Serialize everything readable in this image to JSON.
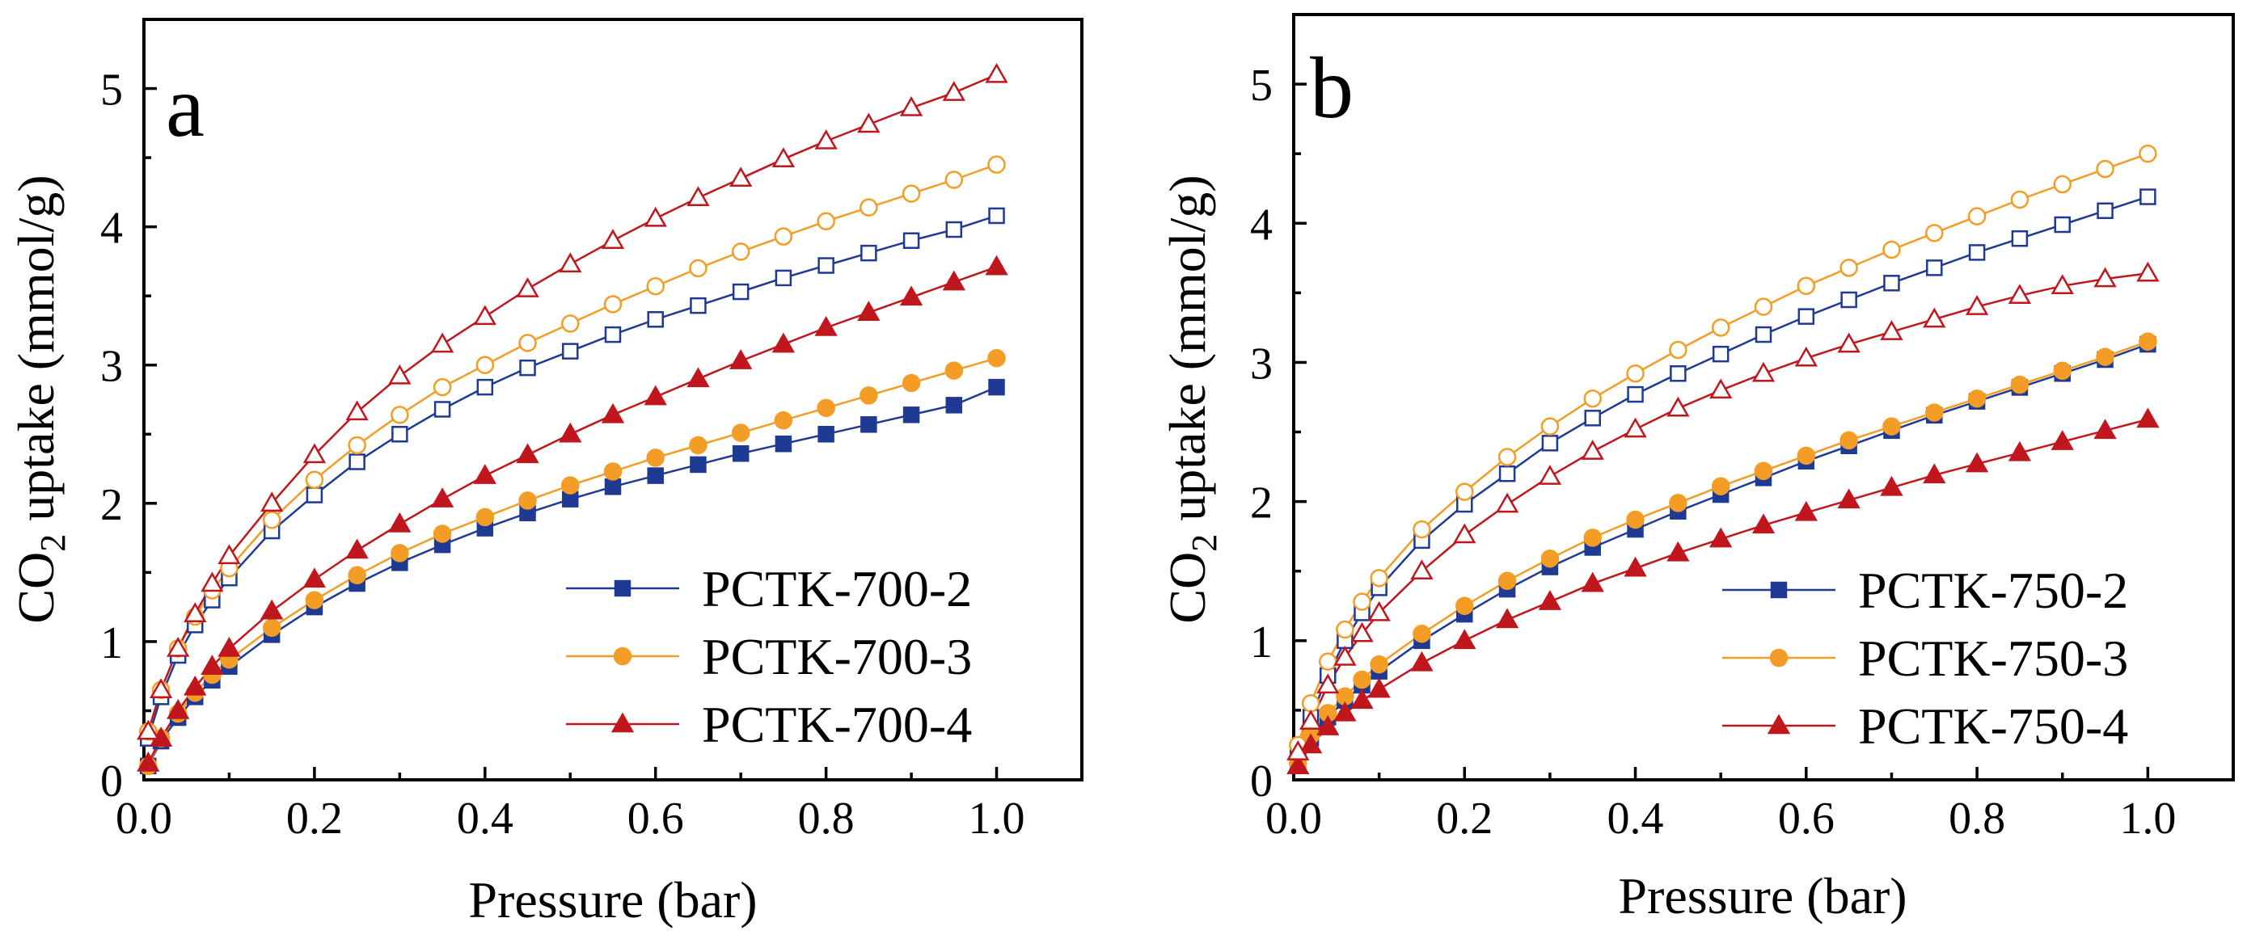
{
  "chart_data": [
    {
      "panel": "a",
      "type": "line",
      "xlabel": "Pressure (bar)",
      "ylabel": "CO2 uptake (mmol/g)",
      "xlim": [
        0.0,
        1.1
      ],
      "ylim": [
        0,
        5.5
      ],
      "xticks": [
        "0.0",
        "0.2",
        "0.4",
        "0.6",
        "0.8",
        "1.0"
      ],
      "yticks": [
        "0",
        "1",
        "2",
        "3",
        "4",
        "5"
      ],
      "legend_position": "bottom-right",
      "series": [
        {
          "name": "PCTK-700-2",
          "color": "#1f3a93",
          "marker": "square",
          "kind": "adsorption",
          "x": [
            0.005,
            0.02,
            0.04,
            0.06,
            0.08,
            0.1,
            0.15,
            0.2,
            0.25,
            0.3,
            0.35,
            0.4,
            0.45,
            0.5,
            0.55,
            0.6,
            0.65,
            0.7,
            0.75,
            0.8,
            0.85,
            0.9,
            0.95,
            1.0
          ],
          "y": [
            0.1,
            0.28,
            0.45,
            0.6,
            0.72,
            0.82,
            1.05,
            1.25,
            1.42,
            1.57,
            1.7,
            1.82,
            1.93,
            2.03,
            2.12,
            2.2,
            2.28,
            2.36,
            2.43,
            2.5,
            2.57,
            2.64,
            2.71,
            2.84
          ]
        },
        {
          "name": "PCTK-700-2 (desorption)",
          "color": "#1f3a93",
          "marker": "square-open",
          "kind": "desorption",
          "in_legend": false,
          "x": [
            0.005,
            0.02,
            0.04,
            0.06,
            0.08,
            0.1,
            0.15,
            0.2,
            0.25,
            0.3,
            0.35,
            0.4,
            0.45,
            0.5,
            0.55,
            0.6,
            0.65,
            0.7,
            0.75,
            0.8,
            0.85,
            0.9,
            0.95,
            1.0
          ],
          "y": [
            0.3,
            0.6,
            0.9,
            1.12,
            1.3,
            1.46,
            1.8,
            2.06,
            2.3,
            2.5,
            2.68,
            2.84,
            2.98,
            3.1,
            3.22,
            3.33,
            3.43,
            3.53,
            3.63,
            3.72,
            3.81,
            3.9,
            3.98,
            4.08
          ]
        },
        {
          "name": "PCTK-700-3",
          "color": "#f39c26",
          "marker": "circle",
          "kind": "adsorption",
          "x": [
            0.005,
            0.02,
            0.04,
            0.06,
            0.08,
            0.1,
            0.15,
            0.2,
            0.25,
            0.3,
            0.35,
            0.4,
            0.45,
            0.5,
            0.55,
            0.6,
            0.65,
            0.7,
            0.75,
            0.8,
            0.85,
            0.9,
            0.95,
            1.0
          ],
          "y": [
            0.1,
            0.3,
            0.48,
            0.63,
            0.76,
            0.87,
            1.1,
            1.3,
            1.48,
            1.64,
            1.78,
            1.9,
            2.02,
            2.13,
            2.23,
            2.33,
            2.42,
            2.51,
            2.6,
            2.69,
            2.78,
            2.87,
            2.96,
            3.05
          ]
        },
        {
          "name": "PCTK-700-3 (desorption)",
          "color": "#f39c26",
          "marker": "circle-open",
          "kind": "desorption",
          "in_legend": false,
          "x": [
            0.005,
            0.02,
            0.04,
            0.06,
            0.08,
            0.1,
            0.15,
            0.2,
            0.25,
            0.3,
            0.35,
            0.4,
            0.45,
            0.5,
            0.55,
            0.6,
            0.65,
            0.7,
            0.75,
            0.8,
            0.85,
            0.9,
            0.95,
            1.0
          ],
          "y": [
            0.35,
            0.65,
            0.95,
            1.18,
            1.37,
            1.53,
            1.88,
            2.17,
            2.42,
            2.64,
            2.84,
            3.0,
            3.16,
            3.3,
            3.44,
            3.57,
            3.7,
            3.82,
            3.93,
            4.04,
            4.14,
            4.24,
            4.34,
            4.45
          ]
        },
        {
          "name": "PCTK-700-4",
          "color": "#c0161d",
          "marker": "triangle",
          "kind": "adsorption",
          "x": [
            0.005,
            0.02,
            0.04,
            0.06,
            0.08,
            0.1,
            0.15,
            0.2,
            0.25,
            0.3,
            0.35,
            0.4,
            0.45,
            0.5,
            0.55,
            0.6,
            0.65,
            0.7,
            0.75,
            0.8,
            0.85,
            0.9,
            0.95,
            1.0
          ],
          "y": [
            0.12,
            0.3,
            0.5,
            0.67,
            0.82,
            0.95,
            1.22,
            1.45,
            1.66,
            1.85,
            2.03,
            2.2,
            2.35,
            2.5,
            2.64,
            2.77,
            2.9,
            3.03,
            3.15,
            3.27,
            3.38,
            3.49,
            3.6,
            3.71
          ]
        },
        {
          "name": "PCTK-700-4 (desorption)",
          "color": "#c0161d",
          "marker": "triangle-open",
          "kind": "desorption",
          "in_legend": false,
          "x": [
            0.005,
            0.02,
            0.04,
            0.06,
            0.08,
            0.1,
            0.15,
            0.2,
            0.25,
            0.3,
            0.35,
            0.4,
            0.45,
            0.5,
            0.55,
            0.6,
            0.65,
            0.7,
            0.75,
            0.8,
            0.85,
            0.9,
            0.95,
            1.0
          ],
          "y": [
            0.35,
            0.65,
            0.95,
            1.2,
            1.42,
            1.62,
            2.0,
            2.35,
            2.66,
            2.92,
            3.15,
            3.35,
            3.55,
            3.73,
            3.9,
            4.06,
            4.21,
            4.35,
            4.49,
            4.62,
            4.74,
            4.86,
            4.97,
            5.1
          ]
        }
      ]
    },
    {
      "panel": "b",
      "type": "line",
      "xlabel": "Pressure (bar)",
      "ylabel": "CO2 uptake (mmol/g)",
      "xlim": [
        0.0,
        1.1
      ],
      "ylim": [
        0,
        5.5
      ],
      "xticks": [
        "0.0",
        "0.2",
        "0.4",
        "0.6",
        "0.8",
        "1.0"
      ],
      "yticks": [
        "0",
        "1",
        "2",
        "3",
        "4",
        "5"
      ],
      "legend_position": "bottom-right",
      "series": [
        {
          "name": "PCTK-750-2",
          "color": "#1f3a93",
          "marker": "square",
          "kind": "adsorption",
          "x": [
            0.005,
            0.02,
            0.04,
            0.06,
            0.08,
            0.1,
            0.15,
            0.2,
            0.25,
            0.3,
            0.35,
            0.4,
            0.45,
            0.5,
            0.55,
            0.6,
            0.65,
            0.7,
            0.75,
            0.8,
            0.85,
            0.9,
            0.95,
            1.0
          ],
          "y": [
            0.12,
            0.3,
            0.45,
            0.57,
            0.68,
            0.78,
            1.0,
            1.19,
            1.37,
            1.53,
            1.67,
            1.8,
            1.93,
            2.05,
            2.17,
            2.29,
            2.4,
            2.51,
            2.62,
            2.72,
            2.82,
            2.92,
            3.02,
            3.13
          ]
        },
        {
          "name": "PCTK-750-2 (desorption)",
          "color": "#1f3a93",
          "marker": "square-open",
          "kind": "desorption",
          "in_legend": false,
          "x": [
            0.005,
            0.02,
            0.04,
            0.06,
            0.08,
            0.1,
            0.15,
            0.2,
            0.25,
            0.3,
            0.35,
            0.4,
            0.45,
            0.5,
            0.55,
            0.6,
            0.65,
            0.7,
            0.75,
            0.8,
            0.85,
            0.9,
            0.95,
            1.0
          ],
          "y": [
            0.2,
            0.45,
            0.75,
            1.0,
            1.2,
            1.38,
            1.72,
            1.98,
            2.2,
            2.42,
            2.6,
            2.77,
            2.92,
            3.06,
            3.2,
            3.33,
            3.45,
            3.57,
            3.68,
            3.79,
            3.89,
            3.99,
            4.09,
            4.19
          ]
        },
        {
          "name": "PCTK-750-3",
          "color": "#f39c26",
          "marker": "circle",
          "kind": "adsorption",
          "x": [
            0.005,
            0.02,
            0.04,
            0.06,
            0.08,
            0.1,
            0.15,
            0.2,
            0.25,
            0.3,
            0.35,
            0.4,
            0.45,
            0.5,
            0.55,
            0.6,
            0.65,
            0.7,
            0.75,
            0.8,
            0.85,
            0.9,
            0.95,
            1.0
          ],
          "y": [
            0.12,
            0.32,
            0.48,
            0.6,
            0.72,
            0.83,
            1.05,
            1.25,
            1.43,
            1.59,
            1.74,
            1.87,
            1.99,
            2.11,
            2.22,
            2.33,
            2.44,
            2.54,
            2.64,
            2.74,
            2.84,
            2.94,
            3.04,
            3.15
          ]
        },
        {
          "name": "PCTK-750-3 (desorption)",
          "color": "#f39c26",
          "marker": "circle-open",
          "kind": "desorption",
          "in_legend": false,
          "x": [
            0.005,
            0.02,
            0.04,
            0.06,
            0.08,
            0.1,
            0.15,
            0.2,
            0.25,
            0.3,
            0.35,
            0.4,
            0.45,
            0.5,
            0.55,
            0.6,
            0.65,
            0.7,
            0.75,
            0.8,
            0.85,
            0.9,
            0.95,
            1.0
          ],
          "y": [
            0.25,
            0.55,
            0.85,
            1.08,
            1.28,
            1.45,
            1.8,
            2.07,
            2.32,
            2.54,
            2.74,
            2.92,
            3.09,
            3.25,
            3.4,
            3.55,
            3.68,
            3.81,
            3.93,
            4.05,
            4.17,
            4.28,
            4.39,
            4.5
          ]
        },
        {
          "name": "PCTK-750-4",
          "color": "#c0161d",
          "marker": "triangle",
          "kind": "adsorption",
          "x": [
            0.005,
            0.02,
            0.04,
            0.06,
            0.08,
            0.1,
            0.15,
            0.2,
            0.25,
            0.3,
            0.35,
            0.4,
            0.45,
            0.5,
            0.55,
            0.6,
            0.65,
            0.7,
            0.75,
            0.8,
            0.85,
            0.9,
            0.95,
            1.0
          ],
          "y": [
            0.1,
            0.25,
            0.38,
            0.48,
            0.57,
            0.65,
            0.84,
            1.0,
            1.15,
            1.28,
            1.41,
            1.52,
            1.63,
            1.73,
            1.83,
            1.92,
            2.01,
            2.1,
            2.19,
            2.27,
            2.35,
            2.43,
            2.51,
            2.59
          ]
        },
        {
          "name": "PCTK-750-4 (desorption)",
          "color": "#c0161d",
          "marker": "triangle-open",
          "kind": "desorption",
          "in_legend": false,
          "x": [
            0.005,
            0.02,
            0.04,
            0.06,
            0.08,
            0.1,
            0.15,
            0.2,
            0.25,
            0.3,
            0.35,
            0.4,
            0.45,
            0.5,
            0.55,
            0.6,
            0.65,
            0.7,
            0.75,
            0.8,
            0.85,
            0.9,
            0.95,
            1.0
          ],
          "y": [
            0.2,
            0.42,
            0.68,
            0.88,
            1.05,
            1.2,
            1.5,
            1.76,
            1.98,
            2.18,
            2.36,
            2.52,
            2.67,
            2.8,
            2.92,
            3.03,
            3.13,
            3.22,
            3.31,
            3.4,
            3.48,
            3.55,
            3.6,
            3.64
          ]
        }
      ]
    }
  ]
}
